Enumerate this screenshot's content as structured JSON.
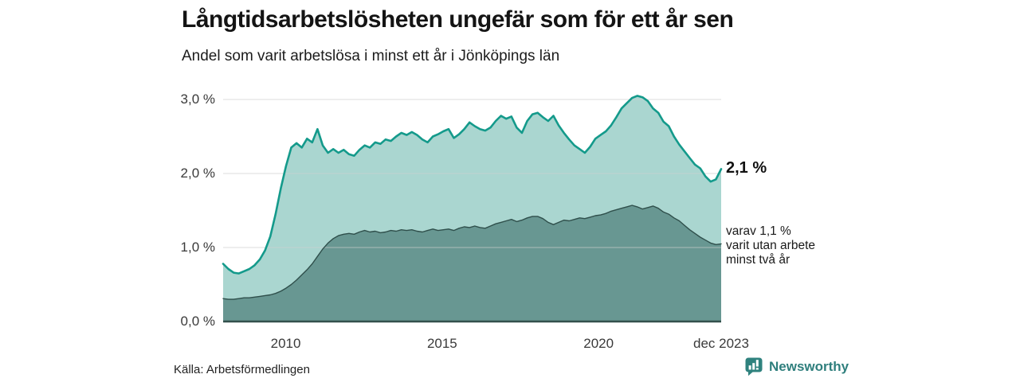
{
  "header": {
    "title": "Långtidsarbetslösheten ungefär som för ett år sen",
    "subtitle": "Andel som varit arbetslösa i minst ett år i Jönköpings län"
  },
  "chart_data": {
    "type": "area",
    "title": "Långtidsarbetslösheten ungefär som för ett år sen",
    "subtitle": "Andel som varit arbetslösa i minst ett år i Jönköpings län",
    "x_domain": [
      2008.0,
      2023.917
    ],
    "ylim": [
      0,
      3.2
    ],
    "grid": true,
    "grid_color": "#cfcfcf",
    "baseline_color": "#33504c",
    "y_ticks": [
      {
        "value": 3.0,
        "label": "3,0 %"
      },
      {
        "value": 2.0,
        "label": "2,0 %"
      },
      {
        "value": 1.0,
        "label": "1,0 %"
      },
      {
        "value": 0.0,
        "label": "0,0 %"
      }
    ],
    "x_ticks": [
      {
        "value": 2010,
        "label": "2010"
      },
      {
        "value": 2015,
        "label": "2015"
      },
      {
        "value": 2020,
        "label": "2020"
      },
      {
        "value": 2023.917,
        "label": "dec 2023"
      }
    ],
    "series": [
      {
        "name": "Andel arbetslösa minst ett år",
        "fill": "#aad6d0",
        "line": "#149a8b",
        "line_width": 2.6,
        "end_value": "2,1 %",
        "values": [
          0.78,
          0.71,
          0.66,
          0.65,
          0.68,
          0.71,
          0.76,
          0.84,
          0.96,
          1.15,
          1.45,
          1.8,
          2.1,
          2.35,
          2.41,
          2.35,
          2.47,
          2.42,
          2.6,
          2.38,
          2.28,
          2.33,
          2.28,
          2.32,
          2.26,
          2.24,
          2.32,
          2.38,
          2.35,
          2.42,
          2.4,
          2.46,
          2.44,
          2.5,
          2.55,
          2.52,
          2.56,
          2.52,
          2.46,
          2.42,
          2.5,
          2.53,
          2.57,
          2.6,
          2.48,
          2.53,
          2.6,
          2.69,
          2.64,
          2.6,
          2.58,
          2.62,
          2.71,
          2.78,
          2.74,
          2.77,
          2.62,
          2.55,
          2.71,
          2.8,
          2.82,
          2.76,
          2.71,
          2.78,
          2.65,
          2.55,
          2.46,
          2.38,
          2.33,
          2.28,
          2.36,
          2.47,
          2.52,
          2.57,
          2.65,
          2.76,
          2.88,
          2.95,
          3.02,
          3.05,
          3.03,
          2.98,
          2.88,
          2.82,
          2.7,
          2.64,
          2.5,
          2.39,
          2.3,
          2.21,
          2.12,
          2.07,
          1.96,
          1.89,
          1.92,
          2.06
        ]
      },
      {
        "name": "varav utan arbete minst två år",
        "fill": "#689792",
        "line": "#2f4f4b",
        "line_width": 1.4,
        "end_value": "1,1 %",
        "values": [
          0.31,
          0.3,
          0.3,
          0.31,
          0.32,
          0.32,
          0.33,
          0.34,
          0.35,
          0.36,
          0.38,
          0.41,
          0.45,
          0.5,
          0.56,
          0.63,
          0.7,
          0.78,
          0.88,
          0.98,
          1.06,
          1.12,
          1.16,
          1.18,
          1.19,
          1.18,
          1.21,
          1.23,
          1.21,
          1.22,
          1.2,
          1.21,
          1.23,
          1.22,
          1.24,
          1.23,
          1.24,
          1.22,
          1.21,
          1.23,
          1.25,
          1.23,
          1.24,
          1.25,
          1.23,
          1.26,
          1.28,
          1.27,
          1.29,
          1.27,
          1.26,
          1.29,
          1.32,
          1.34,
          1.36,
          1.38,
          1.35,
          1.37,
          1.4,
          1.42,
          1.42,
          1.39,
          1.34,
          1.31,
          1.34,
          1.37,
          1.36,
          1.38,
          1.4,
          1.39,
          1.41,
          1.43,
          1.44,
          1.46,
          1.49,
          1.51,
          1.53,
          1.55,
          1.57,
          1.55,
          1.52,
          1.54,
          1.56,
          1.53,
          1.48,
          1.45,
          1.4,
          1.36,
          1.3,
          1.24,
          1.19,
          1.14,
          1.1,
          1.06,
          1.04,
          1.05
        ]
      }
    ],
    "annotations": {
      "end_value_label": "2,1 %",
      "sub_label": "varav 1,1 %\nvarit utan arbete\nminst två år"
    }
  },
  "footer": {
    "source": "Källa: Arbetsförmedlingen",
    "brand": "Newsworthy",
    "brand_color": "#2f7f7d"
  }
}
